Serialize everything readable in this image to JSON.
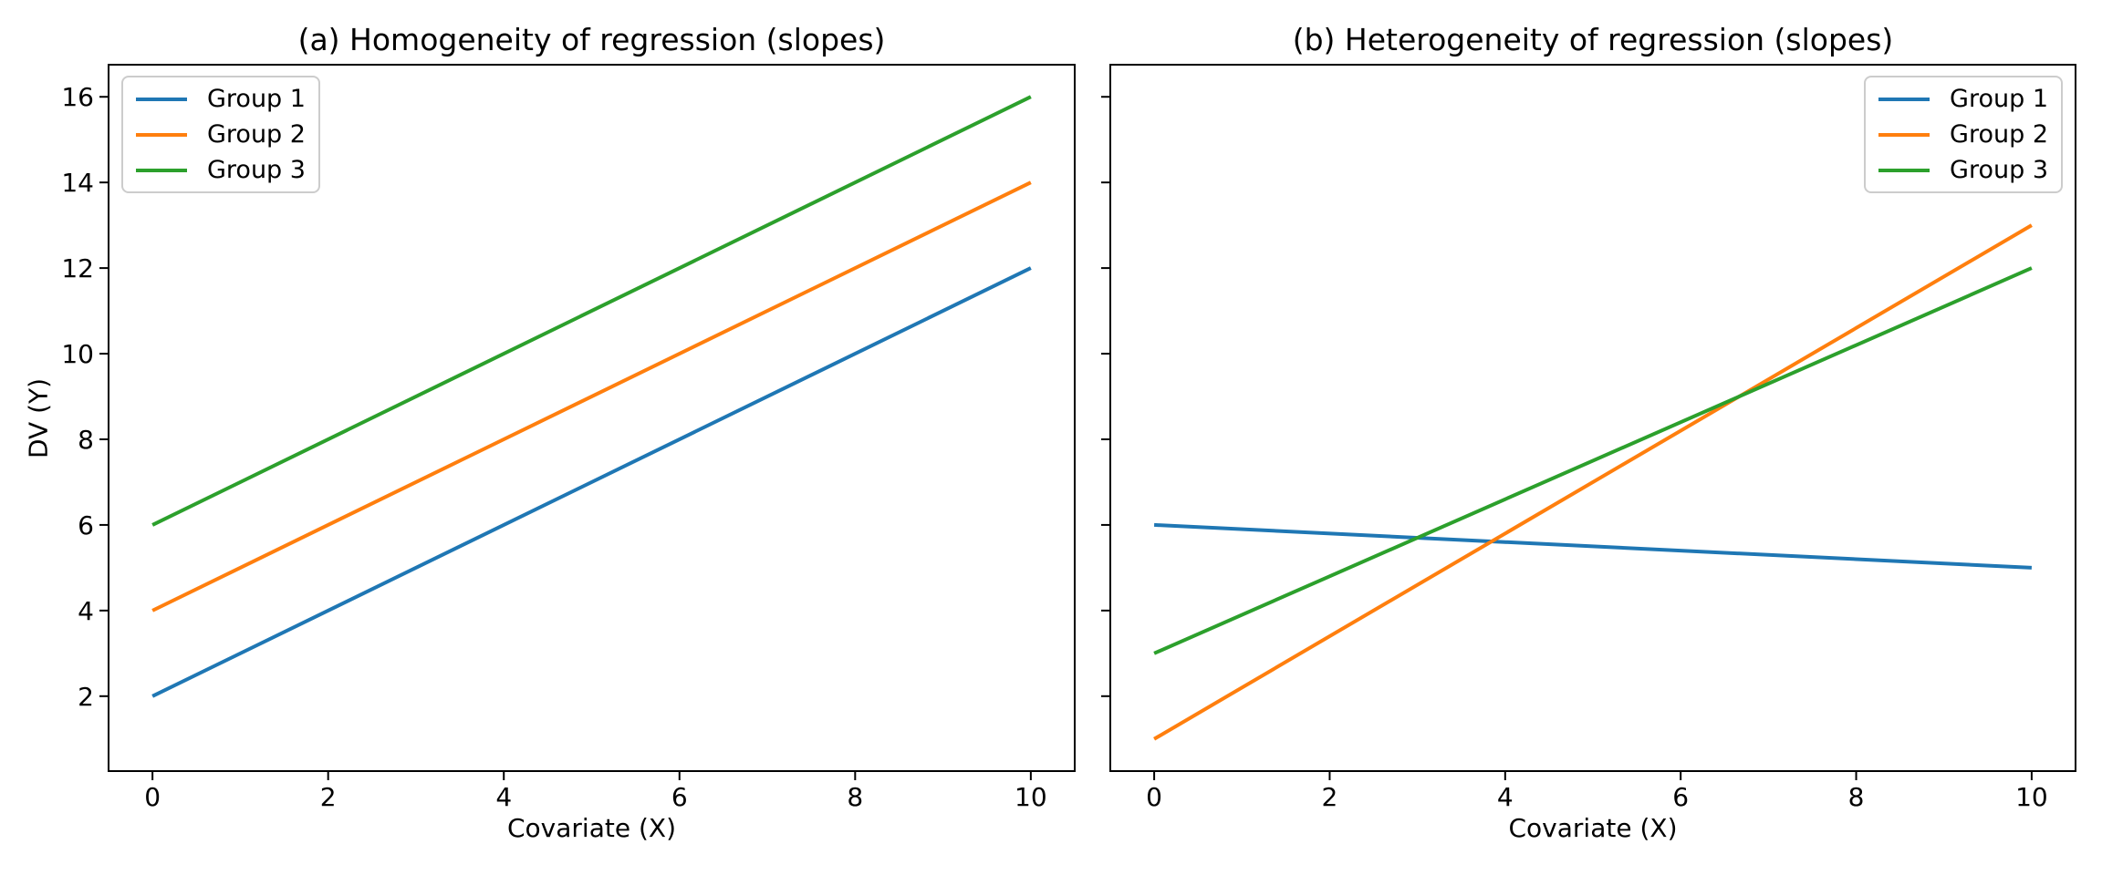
{
  "figure": {
    "background": "#ffffff",
    "axis_color": "#000000"
  },
  "chart_data": [
    {
      "type": "line",
      "title": "(a) Homogeneity of regression (slopes)",
      "xlabel": "Covariate (X)",
      "ylabel": "DV (Y)",
      "xlim": [
        -0.5,
        10.5
      ],
      "ylim": [
        0.25,
        16.75
      ],
      "xticks": [
        0,
        2,
        4,
        6,
        8,
        10
      ],
      "yticks": [
        2,
        4,
        6,
        8,
        10,
        12,
        14,
        16
      ],
      "show_ytick_labels": true,
      "grid": false,
      "legend_position": "upper-left",
      "series": [
        {
          "name": "Group 1",
          "color": "#1f77b4",
          "x": [
            0,
            10
          ],
          "y": [
            2,
            12
          ]
        },
        {
          "name": "Group 2",
          "color": "#ff7f0e",
          "x": [
            0,
            10
          ],
          "y": [
            4,
            14
          ]
        },
        {
          "name": "Group 3",
          "color": "#2ca02c",
          "x": [
            0,
            10
          ],
          "y": [
            6,
            16
          ]
        }
      ]
    },
    {
      "type": "line",
      "title": "(b) Heterogeneity of regression (slopes)",
      "xlabel": "Covariate (X)",
      "ylabel": "",
      "xlim": [
        -0.5,
        10.5
      ],
      "ylim": [
        0.25,
        16.75
      ],
      "xticks": [
        0,
        2,
        4,
        6,
        8,
        10
      ],
      "yticks": [
        2,
        4,
        6,
        8,
        10,
        12,
        14,
        16
      ],
      "show_ytick_labels": false,
      "grid": false,
      "legend_position": "upper-right",
      "series": [
        {
          "name": "Group 1",
          "color": "#1f77b4",
          "x": [
            0,
            10
          ],
          "y": [
            6,
            5
          ]
        },
        {
          "name": "Group 2",
          "color": "#ff7f0e",
          "x": [
            0,
            10
          ],
          "y": [
            1,
            13
          ]
        },
        {
          "name": "Group 3",
          "color": "#2ca02c",
          "x": [
            0,
            10
          ],
          "y": [
            3,
            12
          ]
        }
      ]
    }
  ]
}
